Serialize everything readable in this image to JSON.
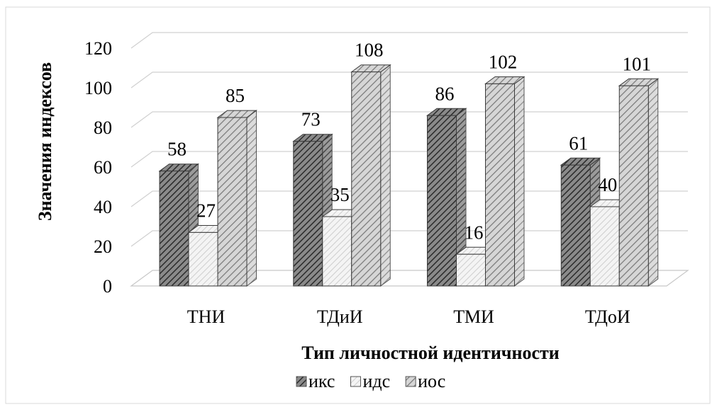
{
  "chart_data": {
    "type": "bar",
    "categories": [
      "ТНИ",
      "ТДиИ",
      "ТМИ",
      "ТДоИ"
    ],
    "series": [
      {
        "name": "икс",
        "values": [
          58,
          73,
          86,
          61
        ],
        "color": "#6e6e6e"
      },
      {
        "name": "идс",
        "values": [
          27,
          35,
          16,
          40
        ],
        "color": "#e2e2e2"
      },
      {
        "name": "иос",
        "values": [
          85,
          108,
          102,
          101
        ],
        "color": "#b6b6b6"
      }
    ],
    "title": "",
    "xlabel": "Тип личностной идентичности",
    "ylabel": "Значения индексов",
    "ylim": [
      0,
      120
    ],
    "yticks": [
      0,
      20,
      40,
      60,
      80,
      100,
      120
    ],
    "grid": true,
    "legend_position": "bottom",
    "style": "3d-clustered-hatched"
  }
}
